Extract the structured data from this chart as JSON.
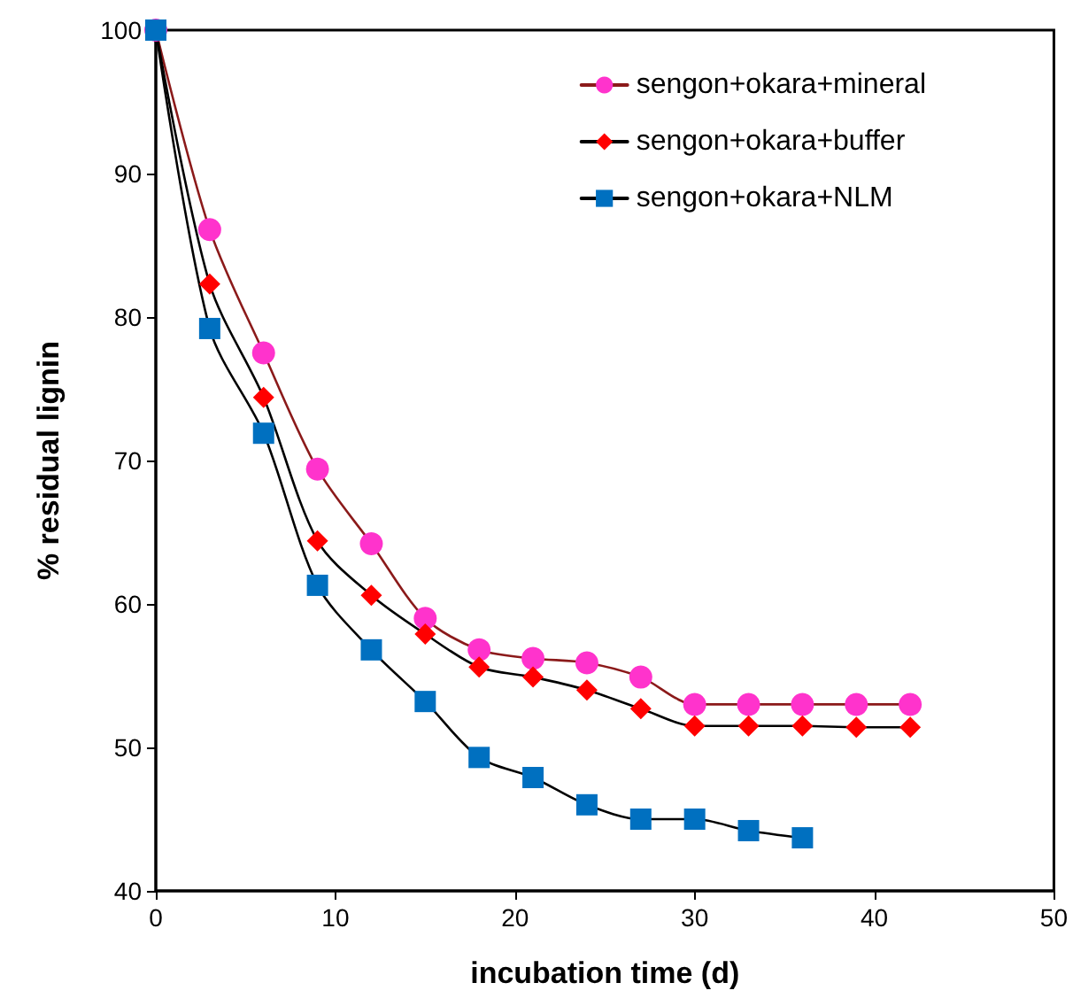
{
  "chart_data": {
    "type": "line",
    "xlabel": "incubation time (d)",
    "ylabel": "% residual lignin",
    "x": [
      0,
      3,
      6,
      9,
      12,
      15,
      18,
      21,
      24,
      27,
      30,
      33,
      36,
      39,
      42
    ],
    "series": [
      {
        "name": "sengon+okara+mineral",
        "color": "#ff33cc",
        "marker": "circle",
        "values": [
          100,
          86.1,
          77.5,
          69.4,
          64.2,
          59.0,
          56.8,
          56.2,
          55.9,
          54.9,
          53.0,
          53.0,
          53.0,
          53.0,
          53.0
        ]
      },
      {
        "name": "sengon+okara+buffer",
        "color": "#ff0000",
        "marker": "diamond",
        "values": [
          100,
          82.3,
          74.4,
          64.4,
          60.6,
          57.9,
          55.6,
          54.9,
          54.0,
          52.7,
          51.5,
          51.5,
          51.5,
          51.4,
          51.4
        ]
      },
      {
        "name": "sengon+okara+NLM",
        "color": "#0070c0",
        "marker": "square",
        "values": [
          100,
          79.2,
          71.9,
          61.3,
          56.8,
          53.2,
          49.3,
          47.9,
          46.0,
          45.0,
          45.0,
          44.2,
          43.7,
          null,
          null
        ]
      }
    ],
    "xlim": [
      0,
      50
    ],
    "xticks": [
      0,
      10,
      20,
      30,
      40,
      50
    ],
    "ylim": [
      40,
      100
    ],
    "yticks": [
      40,
      50,
      60,
      70,
      80,
      90,
      100
    ],
    "grid": false,
    "legend": "top right",
    "line_style": "solid"
  }
}
